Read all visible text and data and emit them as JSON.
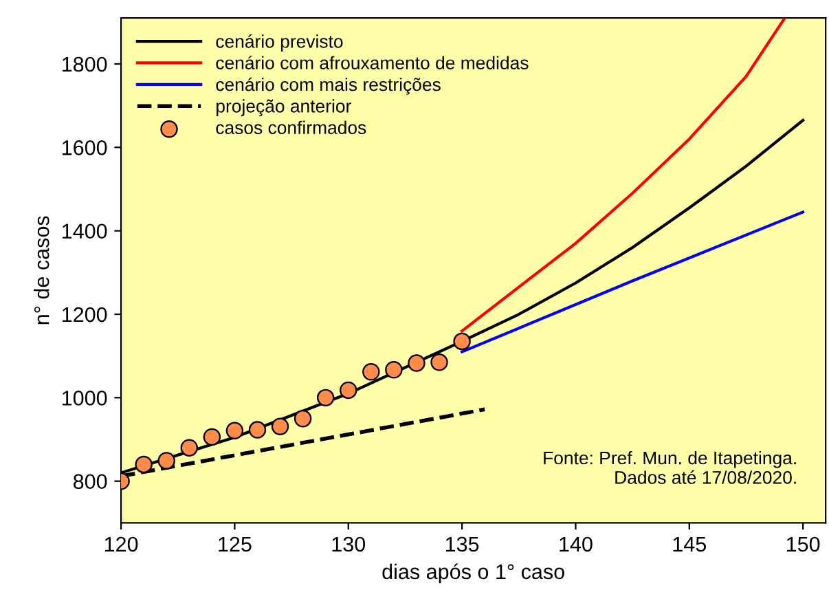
{
  "chart_data": {
    "type": "line",
    "xlabel": "dias após o 1° caso",
    "ylabel": "n° de casos",
    "xlim": [
      120,
      151
    ],
    "ylim": [
      700,
      1910
    ],
    "xticks": [
      120,
      125,
      130,
      135,
      140,
      145,
      150
    ],
    "yticks": [
      800,
      1000,
      1200,
      1400,
      1600,
      1800
    ],
    "grid": false,
    "legend": "top left",
    "annotations": [
      "Fonte: Pref. Mun. de Itapetinga.\nDados até 17/08/2020."
    ],
    "series": [
      {
        "name": "cenário previsto",
        "color": "#000000",
        "line_style": "solid",
        "marker": "none",
        "x": [
          120,
          125,
          130,
          135,
          137.5,
          140,
          142.5,
          145,
          147.5,
          150
        ],
        "values": [
          820,
          905,
          1010,
          1135,
          1200,
          1275,
          1360,
          1455,
          1555,
          1665
        ]
      },
      {
        "name": "cenário com afrouxamento de medidas",
        "color": "#ff0000",
        "line_style": "solid",
        "marker": "none",
        "x": [
          135,
          140,
          142.5,
          145,
          147.5,
          149.2
        ],
        "values": [
          1160,
          1370,
          1490,
          1620,
          1770,
          1910
        ]
      },
      {
        "name": "cenário com mais restrições",
        "color": "#0000ff",
        "line_style": "solid",
        "marker": "none",
        "x": [
          135,
          142.5,
          150
        ],
        "values": [
          1110,
          1280,
          1445
        ]
      },
      {
        "name": "projeção anterior",
        "color": "#000000",
        "line_style": "dashed",
        "marker": "none",
        "x": [
          120,
          136
        ],
        "values": [
          812,
          972
        ]
      },
      {
        "name": "casos confirmados",
        "type": "scatter",
        "color": "#ff8c4a",
        "marker": "circle",
        "x": [
          120,
          121,
          122,
          123,
          124,
          125,
          126,
          127,
          128,
          129,
          130,
          131,
          132,
          133,
          134,
          135
        ],
        "values": [
          800,
          840,
          849,
          880,
          906,
          921,
          923,
          931,
          950,
          1000,
          1018,
          1062,
          1067,
          1083,
          1085,
          1135
        ]
      }
    ]
  }
}
